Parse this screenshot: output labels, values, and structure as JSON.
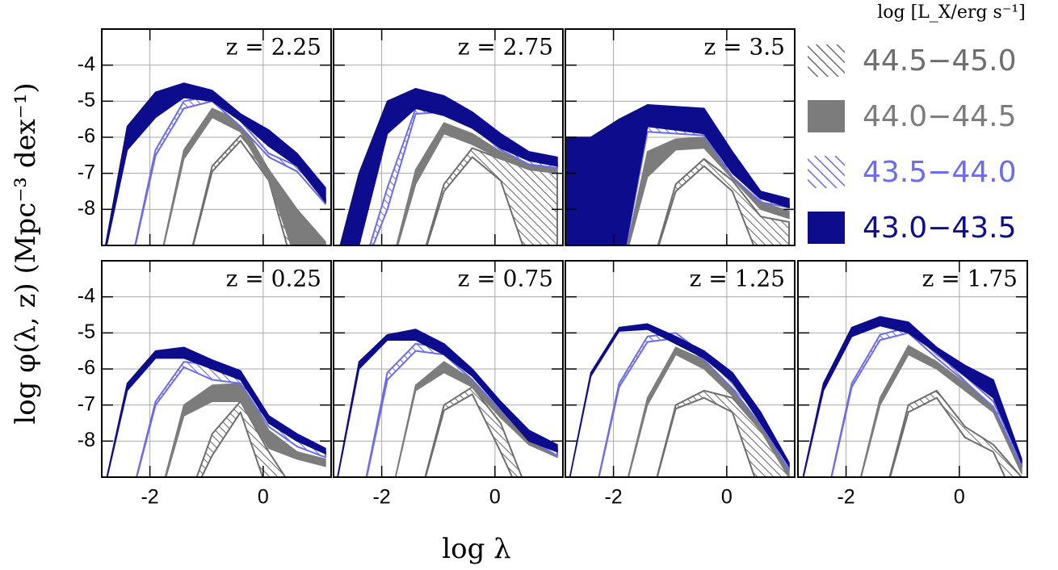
{
  "chart_data": {
    "type": "band",
    "x_label": "log λ",
    "y_label": "log φ(λ, z)  (Mpc⁻³ dex⁻¹)",
    "legend_title": "log [L_X/erg s⁻¹]",
    "x": [
      -2.9,
      -2.4,
      -1.9,
      -1.4,
      -0.9,
      -0.4,
      0.1,
      0.6,
      1.1
    ],
    "xlim": [
      -2.85,
      1.2
    ],
    "ylim": [
      -9,
      -3
    ],
    "xticks": [
      -2,
      0
    ],
    "yticks": [
      -8,
      -7,
      -6,
      -5,
      -4
    ],
    "grid": true,
    "series": [
      {
        "name": "44.5−45.0",
        "color": "#6e6e6e",
        "fill": "hatch"
      },
      {
        "name": "44.0−44.5",
        "color": "#7c7c7c",
        "fill": "solid"
      },
      {
        "name": "43.5−44.0",
        "color": "#6b6bef",
        "fill": "hatch"
      },
      {
        "name": "43.0−43.5",
        "color": "#0c0c8c",
        "fill": "solid"
      }
    ],
    "panels": [
      {
        "label": "z = 2.25",
        "upper": [
          [
            -10,
            -10,
            -10,
            -10,
            -6.8,
            -5.95,
            -6.9,
            -9.5,
            -10
          ],
          [
            -10,
            -10,
            -10,
            -6.35,
            -5.2,
            -5.55,
            -6.9,
            -8.0,
            -8.9
          ],
          [
            -10,
            -10,
            -6.35,
            -5.0,
            -4.85,
            -5.55,
            -6.45,
            -6.8,
            -7.7
          ],
          [
            -10,
            -5.7,
            -4.75,
            -4.5,
            -4.7,
            -5.35,
            -5.8,
            -6.45,
            -7.4
          ]
        ],
        "lower": [
          [
            -10,
            -10,
            -10,
            -10,
            -6.95,
            -6.1,
            -7.2,
            -10,
            -10
          ],
          [
            -10,
            -10,
            -10,
            -6.6,
            -5.45,
            -5.85,
            -7.2,
            -9.5,
            -10
          ],
          [
            -10,
            -10,
            -6.5,
            -5.2,
            -5.0,
            -5.7,
            -6.55,
            -6.95,
            -7.85
          ],
          [
            -10,
            -6.35,
            -5.45,
            -4.9,
            -5.0,
            -5.55,
            -6.25,
            -6.8,
            -7.8
          ]
        ]
      },
      {
        "label": "z = 2.75",
        "upper": [
          [
            -10,
            -10,
            -10,
            -10,
            -7.3,
            -6.3,
            -6.6,
            -6.85,
            -6.95
          ],
          [
            -10,
            -10,
            -10,
            -6.9,
            -5.6,
            -5.9,
            -6.4,
            -6.75,
            -6.85
          ],
          [
            -10,
            -10,
            -7.4,
            -5.2,
            -5.05,
            -5.5,
            -6.15,
            -6.6,
            -6.7
          ],
          [
            -10,
            -7.0,
            -5.0,
            -4.65,
            -4.85,
            -5.3,
            -5.9,
            -6.4,
            -6.55
          ]
        ],
        "lower": [
          [
            -10,
            -10,
            -10,
            -10,
            -7.5,
            -6.55,
            -7.2,
            -9.5,
            -10
          ],
          [
            -10,
            -10,
            -10,
            -7.3,
            -5.9,
            -6.2,
            -6.6,
            -6.9,
            -7.0
          ],
          [
            -10,
            -10,
            -8.0,
            -5.35,
            -5.3,
            -5.7,
            -6.35,
            -6.75,
            -6.85
          ],
          [
            -10,
            -9.0,
            -5.9,
            -5.2,
            -5.4,
            -5.75,
            -6.3,
            -6.65,
            -6.8
          ]
        ]
      },
      {
        "label": "z = 3.5",
        "upper": [
          [
            -10,
            -10,
            -10,
            -10,
            -7.3,
            -6.6,
            -7.2,
            -8.2,
            -8.35
          ],
          [
            -10,
            -10,
            -10,
            -6.4,
            -6.05,
            -6.0,
            -7.0,
            -7.8,
            -8.05
          ],
          [
            -10,
            -10,
            -7.7,
            -5.5,
            -5.55,
            -5.55,
            -6.9,
            -7.65,
            -7.85
          ],
          [
            -6.0,
            -6.0,
            -5.5,
            -5.1,
            -5.15,
            -5.2,
            -6.4,
            -7.5,
            -7.7
          ]
        ],
        "lower": [
          [
            -10,
            -10,
            -10,
            -10,
            -7.5,
            -6.8,
            -7.5,
            -9.5,
            -10
          ],
          [
            -10,
            -10,
            -10,
            -7.1,
            -6.35,
            -6.3,
            -7.15,
            -8.0,
            -8.25
          ],
          [
            -10,
            -10,
            -10,
            -5.85,
            -5.9,
            -5.95,
            -7.1,
            -7.8,
            -7.95
          ],
          [
            -10,
            -10,
            -10,
            -5.7,
            -5.8,
            -5.9,
            -7.0,
            -7.7,
            -7.95
          ]
        ]
      },
      {
        "label": "z = 0.25",
        "upper": [
          [
            -10,
            -10,
            -10,
            -10,
            -7.8,
            -6.9,
            -8.3,
            -9.5,
            -10
          ],
          [
            -10,
            -10,
            -10,
            -7.0,
            -6.45,
            -6.4,
            -7.7,
            -8.3,
            -8.5
          ],
          [
            -10,
            -10,
            -6.9,
            -5.8,
            -5.9,
            -6.1,
            -7.5,
            -8.0,
            -8.3
          ],
          [
            -10,
            -6.4,
            -5.5,
            -5.4,
            -5.75,
            -6.05,
            -7.3,
            -7.8,
            -8.2
          ]
        ],
        "lower": [
          [
            -10,
            -10,
            -10,
            -10,
            -8.4,
            -7.2,
            -9.5,
            -10,
            -10
          ],
          [
            -10,
            -10,
            -10,
            -7.3,
            -6.9,
            -6.9,
            -8.2,
            -8.5,
            -8.7
          ],
          [
            -10,
            -10,
            -7.0,
            -5.95,
            -6.3,
            -6.4,
            -7.6,
            -8.15,
            -8.45
          ],
          [
            -10,
            -6.6,
            -5.7,
            -5.7,
            -6.0,
            -6.3,
            -7.5,
            -8.0,
            -8.35
          ]
        ]
      },
      {
        "label": "z = 0.75",
        "upper": [
          [
            -10,
            -10,
            -10,
            -10,
            -7.0,
            -6.5,
            -7.5,
            -9.5,
            -10
          ],
          [
            -10,
            -10,
            -10,
            -6.45,
            -5.8,
            -6.3,
            -7.2,
            -7.95,
            -8.3
          ],
          [
            -10,
            -10,
            -6.1,
            -5.3,
            -5.4,
            -6.1,
            -7.0,
            -7.8,
            -8.2
          ],
          [
            -10,
            -5.8,
            -5.05,
            -4.9,
            -5.3,
            -6.0,
            -6.9,
            -7.7,
            -8.1
          ]
        ],
        "lower": [
          [
            -10,
            -10,
            -10,
            -10,
            -7.15,
            -6.7,
            -8.3,
            -10,
            -10
          ],
          [
            -10,
            -10,
            -10,
            -6.6,
            -6.1,
            -6.5,
            -7.35,
            -8.1,
            -8.45
          ],
          [
            -10,
            -10,
            -6.3,
            -5.5,
            -5.6,
            -6.3,
            -7.15,
            -7.95,
            -8.4
          ],
          [
            -10,
            -6.0,
            -5.2,
            -5.2,
            -5.6,
            -6.2,
            -7.1,
            -8.0,
            -8.3
          ]
        ]
      },
      {
        "label": "z = 1.25",
        "upper": [
          [
            -10,
            -10,
            -10,
            -10,
            -7.0,
            -6.6,
            -6.8,
            -7.7,
            -9.0
          ],
          [
            -10,
            -10,
            -10,
            -6.8,
            -5.4,
            -5.75,
            -6.5,
            -7.5,
            -8.8
          ],
          [
            -10,
            -10,
            -6.4,
            -5.1,
            -5.0,
            -5.6,
            -6.4,
            -7.4,
            -8.7
          ],
          [
            -10,
            -6.1,
            -4.85,
            -4.75,
            -5.1,
            -5.5,
            -6.1,
            -7.2,
            -8.6
          ]
        ],
        "lower": [
          [
            -10,
            -10,
            -10,
            -10,
            -7.1,
            -6.8,
            -7.2,
            -9.5,
            -10
          ],
          [
            -10,
            -10,
            -10,
            -7.0,
            -5.6,
            -6.0,
            -6.75,
            -7.7,
            -9.0
          ],
          [
            -10,
            -10,
            -6.5,
            -5.25,
            -5.15,
            -5.75,
            -6.55,
            -7.55,
            -8.8
          ],
          [
            -10,
            -6.2,
            -4.95,
            -4.9,
            -5.3,
            -5.7,
            -6.35,
            -7.5,
            -8.7
          ]
        ]
      },
      {
        "label": "z = 1.75",
        "upper": [
          [
            -10,
            -10,
            -10,
            -10,
            -7.0,
            -6.6,
            -7.6,
            -8.1,
            -9.0
          ],
          [
            -10,
            -10,
            -10,
            -6.8,
            -5.35,
            -5.8,
            -6.4,
            -7.0,
            -8.7
          ],
          [
            -10,
            -10,
            -6.4,
            -5.05,
            -4.85,
            -5.6,
            -6.2,
            -6.9,
            -8.6
          ],
          [
            -10,
            -6.4,
            -4.85,
            -4.55,
            -4.7,
            -5.4,
            -5.9,
            -6.3,
            -8.5
          ]
        ],
        "lower": [
          [
            -10,
            -10,
            -10,
            -10,
            -7.2,
            -6.8,
            -7.9,
            -8.3,
            -10
          ],
          [
            -10,
            -10,
            -10,
            -7.0,
            -5.6,
            -6.0,
            -6.6,
            -7.2,
            -8.9
          ],
          [
            -10,
            -10,
            -6.5,
            -5.2,
            -5.0,
            -5.7,
            -6.35,
            -7.05,
            -8.7
          ],
          [
            -10,
            -6.6,
            -5.1,
            -4.8,
            -5.0,
            -5.55,
            -6.2,
            -6.8,
            -8.6
          ]
        ]
      }
    ]
  }
}
